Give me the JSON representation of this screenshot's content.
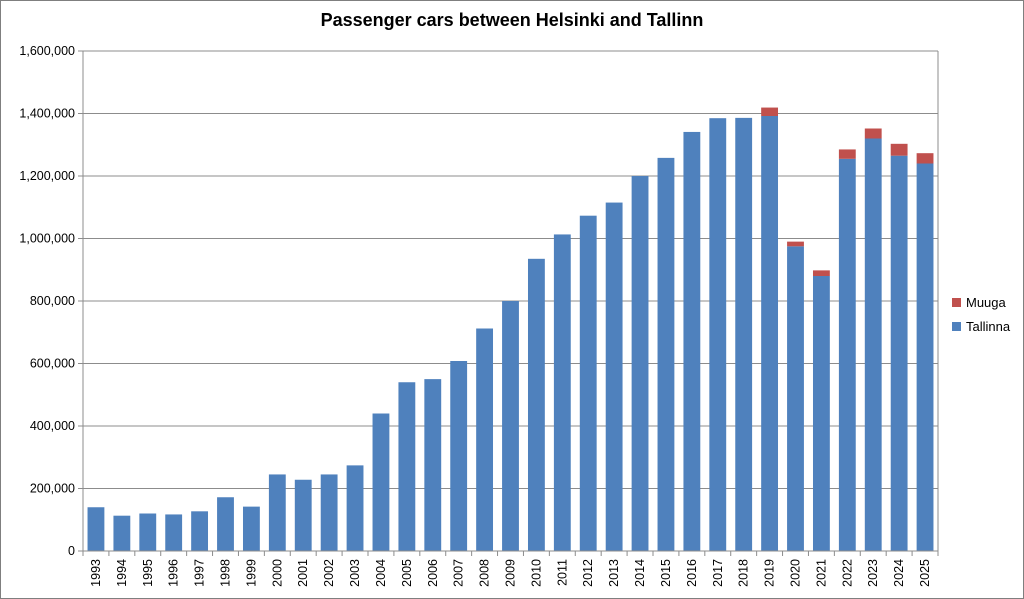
{
  "chart_data": {
    "type": "bar",
    "stacked": true,
    "title": "Passenger cars between Helsinki and Tallinn",
    "xlabel": "",
    "ylabel": "",
    "ylim": [
      0,
      1600000
    ],
    "y_ticks": [
      "0",
      "200,000",
      "400,000",
      "600,000",
      "800,000",
      "1,000,000",
      "1,200,000",
      "1,400,000",
      "1,600,000"
    ],
    "grid": true,
    "legend_position": "right",
    "categories": [
      "1993",
      "1994",
      "1995",
      "1996",
      "1997",
      "1998",
      "1999",
      "2000",
      "2001",
      "2002",
      "2003",
      "2004",
      "2005",
      "2006",
      "2007",
      "2008",
      "2009",
      "2010",
      "2011",
      "2012",
      "2013",
      "2014",
      "2015",
      "2016",
      "2017",
      "2018",
      "2019",
      "2020",
      "2021",
      "2022",
      "2023",
      "2024",
      "2025"
    ],
    "series": [
      {
        "name": "Tallinna",
        "color": "#4f81bd",
        "values": [
          140000,
          113000,
          120000,
          117000,
          127000,
          172000,
          142000,
          245000,
          228000,
          245000,
          274000,
          440000,
          540000,
          550000,
          608000,
          712000,
          800000,
          935000,
          1013000,
          1073000,
          1115000,
          1200000,
          1258000,
          1341000,
          1385000,
          1386000,
          1392000,
          975000,
          880000,
          1255000,
          1320000,
          1265000,
          1240000
        ]
      },
      {
        "name": "Muuga",
        "color": "#c0504d",
        "values": [
          0,
          0,
          0,
          0,
          0,
          0,
          0,
          0,
          0,
          0,
          0,
          0,
          0,
          0,
          0,
          0,
          0,
          0,
          0,
          0,
          0,
          0,
          0,
          0,
          0,
          0,
          27000,
          15000,
          18000,
          30000,
          32000,
          38000,
          33000
        ]
      }
    ]
  }
}
